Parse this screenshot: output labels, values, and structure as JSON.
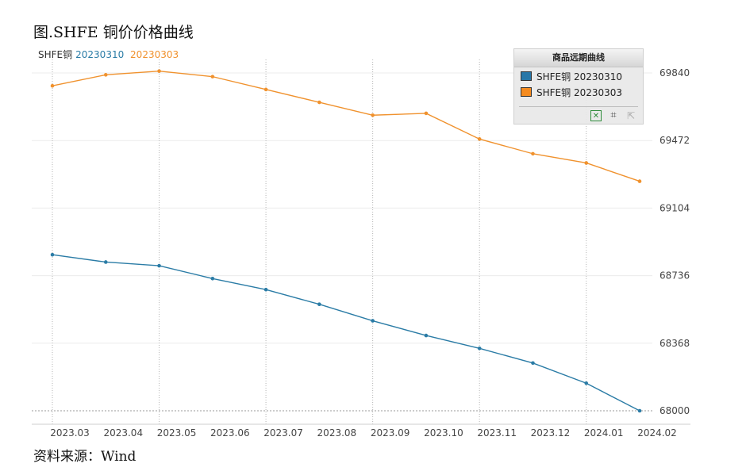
{
  "figure_title": "图.SHFE 铜价价格曲线",
  "source_note": "资料来源：Wind",
  "header_legend": {
    "prefix": "SHFE铜",
    "entries": [
      {
        "label": "20230310",
        "color": "#2b7ca6"
      },
      {
        "label": "20230303",
        "color": "#f0922e"
      }
    ]
  },
  "legend_panel": {
    "title": "商品远期曲线",
    "items": [
      {
        "label": "SHFE铜 20230310",
        "color": "#2877a8"
      },
      {
        "label": "SHFE铜 20230303",
        "color": "#f58b1f"
      }
    ],
    "tools": [
      {
        "name": "excel-export-icon",
        "glyph": "✕"
      },
      {
        "name": "crop-icon",
        "glyph": "⌗"
      },
      {
        "name": "expand-icon",
        "glyph": "⇱"
      }
    ]
  },
  "chart_data": {
    "type": "line",
    "title": "",
    "xlabel": "",
    "ylabel": "",
    "x": [
      "2023.03",
      "2023.04",
      "2023.05",
      "2023.06",
      "2023.07",
      "2023.08",
      "2023.09",
      "2023.10",
      "2023.11",
      "2023.12",
      "2024.01",
      "2024.02"
    ],
    "yticks": [
      68000,
      68368,
      68736,
      69104,
      69472,
      69840
    ],
    "ylim": [
      68000,
      69840
    ],
    "y_axis_side": "right",
    "grid": {
      "vertical_dotted": true,
      "horizontal": true
    },
    "series": [
      {
        "name": "SHFE铜 20230310",
        "color": "#2b7ca6",
        "values": [
          68850,
          68810,
          68790,
          68720,
          68660,
          68580,
          68490,
          68410,
          68340,
          68260,
          68150,
          68000
        ]
      },
      {
        "name": "SHFE铜 20230303",
        "color": "#f0922e",
        "values": [
          69770,
          69830,
          69850,
          69820,
          69750,
          69680,
          69610,
          69620,
          69480,
          69400,
          69350,
          69250
        ]
      }
    ]
  }
}
